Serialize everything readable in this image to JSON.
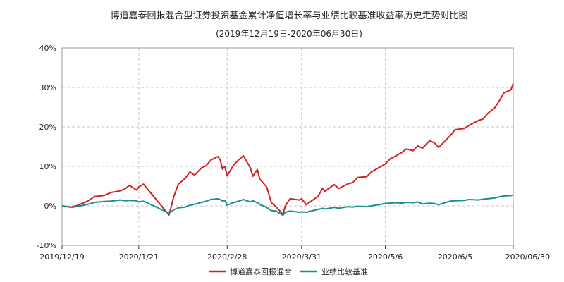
{
  "chart_data": {
    "type": "line",
    "title": "博道嘉泰回报混合型证券投资基金累计净值增长率与业绩比较基准收益率历史走势对比图",
    "subtitle": "(2019年12月19日-2020年06月30日)",
    "ylim": [
      -10,
      40
    ],
    "y_ticks": [
      -10,
      0,
      10,
      20,
      30,
      40
    ],
    "y_tick_labels": [
      "-10%",
      "0%",
      "10%",
      "20%",
      "30%",
      "40%"
    ],
    "x_range": [
      "2019-12-19",
      "2020-06-30"
    ],
    "x_ticks": [
      "2019-12-19",
      "2020-01-21",
      "2020-02-28",
      "2020-03-31",
      "2020-05-06",
      "2020-06-05",
      "2020-06-30"
    ],
    "x_tick_labels": [
      "2019/12/19",
      "2020/1/21",
      "2020/2/28",
      "2020/3/31",
      "2020/5/6",
      "2020/6/5",
      "2020/06/30"
    ],
    "grid": true,
    "legend_position": "bottom",
    "colors": {
      "fund": "#d42121",
      "benchmark": "#1a8f8f",
      "grid": "#c8c8c8",
      "axis": "#333333"
    },
    "series": [
      {
        "name": "博道嘉泰回报混合",
        "color": "#d42121",
        "points": [
          [
            "2019-12-19",
            0
          ],
          [
            "2019-12-23",
            -0.3
          ],
          [
            "2019-12-26",
            0.2
          ],
          [
            "2019-12-30",
            1.2
          ],
          [
            "2020-01-02",
            2.4
          ],
          [
            "2020-01-06",
            2.6
          ],
          [
            "2020-01-09",
            3.4
          ],
          [
            "2020-01-13",
            3.8
          ],
          [
            "2020-01-15",
            4.3
          ],
          [
            "2020-01-17",
            5.2
          ],
          [
            "2020-01-20",
            4.0
          ],
          [
            "2020-01-21",
            4.8
          ],
          [
            "2020-01-23",
            5.5
          ],
          [
            "2020-02-03",
            -2.3
          ],
          [
            "2020-02-05",
            2.3
          ],
          [
            "2020-02-07",
            5.5
          ],
          [
            "2020-02-10",
            7.0
          ],
          [
            "2020-02-12",
            8.6
          ],
          [
            "2020-02-14",
            7.8
          ],
          [
            "2020-02-17",
            9.6
          ],
          [
            "2020-02-19",
            10.2
          ],
          [
            "2020-02-21",
            11.6
          ],
          [
            "2020-02-24",
            12.5
          ],
          [
            "2020-02-25",
            11.7
          ],
          [
            "2020-02-26",
            9.3
          ],
          [
            "2020-02-27",
            10.0
          ],
          [
            "2020-02-28",
            7.6
          ],
          [
            "2020-03-02",
            10.5
          ],
          [
            "2020-03-04",
            11.7
          ],
          [
            "2020-03-06",
            12.7
          ],
          [
            "2020-03-09",
            9.6
          ],
          [
            "2020-03-10",
            7.5
          ],
          [
            "2020-03-12",
            9.2
          ],
          [
            "2020-03-13",
            6.8
          ],
          [
            "2020-03-16",
            4.8
          ],
          [
            "2020-03-18",
            0.8
          ],
          [
            "2020-03-20",
            -0.2
          ],
          [
            "2020-03-23",
            -2.2
          ],
          [
            "2020-03-24",
            0.0
          ],
          [
            "2020-03-26",
            1.8
          ],
          [
            "2020-03-30",
            1.5
          ],
          [
            "2020-03-31",
            1.8
          ],
          [
            "2020-04-02",
            0.3
          ],
          [
            "2020-04-07",
            2.4
          ],
          [
            "2020-04-09",
            4.4
          ],
          [
            "2020-04-10",
            3.7
          ],
          [
            "2020-04-14",
            5.4
          ],
          [
            "2020-04-16",
            4.4
          ],
          [
            "2020-04-20",
            5.6
          ],
          [
            "2020-04-22",
            5.9
          ],
          [
            "2020-04-24",
            7.2
          ],
          [
            "2020-04-28",
            7.4
          ],
          [
            "2020-04-30",
            8.6
          ],
          [
            "2020-05-06",
            10.6
          ],
          [
            "2020-05-08",
            11.9
          ],
          [
            "2020-05-11",
            12.8
          ],
          [
            "2020-05-13",
            13.5
          ],
          [
            "2020-05-15",
            14.4
          ],
          [
            "2020-05-18",
            14.0
          ],
          [
            "2020-05-20",
            15.2
          ],
          [
            "2020-05-22",
            14.6
          ],
          [
            "2020-05-25",
            16.5
          ],
          [
            "2020-05-27",
            16.0
          ],
          [
            "2020-05-29",
            14.8
          ],
          [
            "2020-06-01",
            16.6
          ],
          [
            "2020-06-03",
            17.8
          ],
          [
            "2020-06-05",
            19.3
          ],
          [
            "2020-06-09",
            19.6
          ],
          [
            "2020-06-11",
            20.4
          ],
          [
            "2020-06-15",
            21.6
          ],
          [
            "2020-06-17",
            22.0
          ],
          [
            "2020-06-19",
            23.4
          ],
          [
            "2020-06-22",
            24.8
          ],
          [
            "2020-06-24",
            26.6
          ],
          [
            "2020-06-26",
            28.6
          ],
          [
            "2020-06-29",
            29.4
          ],
          [
            "2020-06-30",
            31.0
          ]
        ]
      },
      {
        "name": "业绩比较基准",
        "color": "#1a8f8f",
        "points": [
          [
            "2019-12-19",
            0
          ],
          [
            "2019-12-23",
            -0.4
          ],
          [
            "2019-12-26",
            -0.1
          ],
          [
            "2019-12-30",
            0.4
          ],
          [
            "2020-01-02",
            0.9
          ],
          [
            "2020-01-06",
            1.1
          ],
          [
            "2020-01-09",
            1.2
          ],
          [
            "2020-01-13",
            1.5
          ],
          [
            "2020-01-15",
            1.3
          ],
          [
            "2020-01-17",
            1.4
          ],
          [
            "2020-01-20",
            1.3
          ],
          [
            "2020-01-21",
            1.0
          ],
          [
            "2020-01-23",
            1.2
          ],
          [
            "2020-02-03",
            -1.8
          ],
          [
            "2020-02-05",
            -1.0
          ],
          [
            "2020-02-07",
            -0.5
          ],
          [
            "2020-02-10",
            -0.3
          ],
          [
            "2020-02-12",
            0.2
          ],
          [
            "2020-02-14",
            0.4
          ],
          [
            "2020-02-17",
            0.9
          ],
          [
            "2020-02-19",
            1.2
          ],
          [
            "2020-02-21",
            1.6
          ],
          [
            "2020-02-24",
            1.8
          ],
          [
            "2020-02-25",
            1.6
          ],
          [
            "2020-02-26",
            1.2
          ],
          [
            "2020-02-27",
            1.4
          ],
          [
            "2020-02-28",
            0.2
          ],
          [
            "2020-03-02",
            0.9
          ],
          [
            "2020-03-04",
            1.2
          ],
          [
            "2020-03-06",
            1.6
          ],
          [
            "2020-03-09",
            1.0
          ],
          [
            "2020-03-10",
            1.3
          ],
          [
            "2020-03-12",
            0.8
          ],
          [
            "2020-03-13",
            0.4
          ],
          [
            "2020-03-16",
            -0.4
          ],
          [
            "2020-03-18",
            -1.2
          ],
          [
            "2020-03-20",
            -1.3
          ],
          [
            "2020-03-23",
            -2.4
          ],
          [
            "2020-03-24",
            -1.6
          ],
          [
            "2020-03-26",
            -1.3
          ],
          [
            "2020-03-30",
            -1.6
          ],
          [
            "2020-03-31",
            -1.5
          ],
          [
            "2020-04-02",
            -1.6
          ],
          [
            "2020-04-07",
            -0.9
          ],
          [
            "2020-04-09",
            -0.6
          ],
          [
            "2020-04-10",
            -0.8
          ],
          [
            "2020-04-14",
            -0.4
          ],
          [
            "2020-04-16",
            -0.6
          ],
          [
            "2020-04-20",
            -0.2
          ],
          [
            "2020-04-22",
            -0.3
          ],
          [
            "2020-04-24",
            -0.1
          ],
          [
            "2020-04-28",
            -0.2
          ],
          [
            "2020-04-30",
            0.0
          ],
          [
            "2020-05-06",
            0.6
          ],
          [
            "2020-05-08",
            0.7
          ],
          [
            "2020-05-11",
            0.8
          ],
          [
            "2020-05-13",
            0.7
          ],
          [
            "2020-05-15",
            0.9
          ],
          [
            "2020-05-18",
            0.8
          ],
          [
            "2020-05-20",
            1.0
          ],
          [
            "2020-05-22",
            0.5
          ],
          [
            "2020-05-25",
            0.7
          ],
          [
            "2020-05-27",
            0.6
          ],
          [
            "2020-05-29",
            0.3
          ],
          [
            "2020-06-01",
            0.9
          ],
          [
            "2020-06-03",
            1.2
          ],
          [
            "2020-06-05",
            1.3
          ],
          [
            "2020-06-09",
            1.4
          ],
          [
            "2020-06-11",
            1.6
          ],
          [
            "2020-06-15",
            1.5
          ],
          [
            "2020-06-17",
            1.7
          ],
          [
            "2020-06-19",
            1.8
          ],
          [
            "2020-06-22",
            2.0
          ],
          [
            "2020-06-24",
            2.3
          ],
          [
            "2020-06-26",
            2.5
          ],
          [
            "2020-06-29",
            2.6
          ],
          [
            "2020-06-30",
            2.8
          ]
        ]
      }
    ]
  }
}
